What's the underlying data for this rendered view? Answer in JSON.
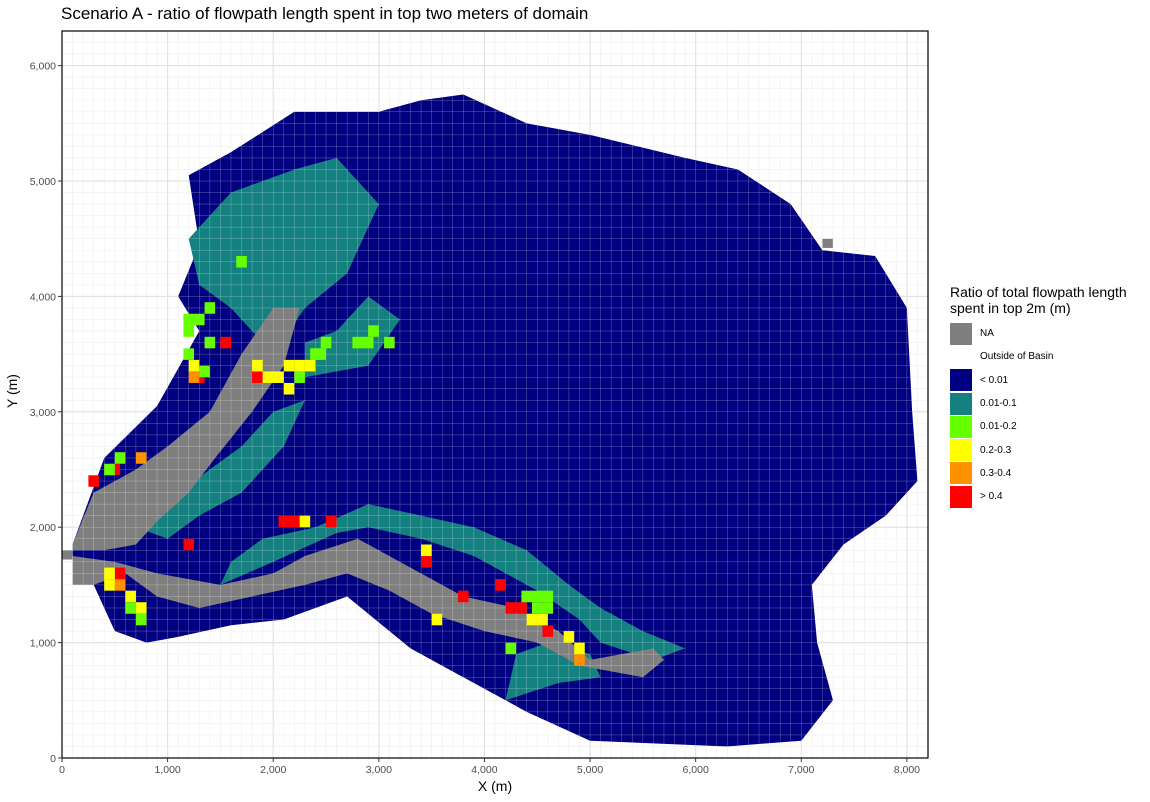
{
  "chart_data": {
    "type": "heatmap",
    "title": "Scenario A - ratio of flowpath length spent in top two meters of domain",
    "xlabel": "X (m)",
    "ylabel": "Y (m)",
    "xlim": [
      0,
      8200
    ],
    "ylim": [
      0,
      6300
    ],
    "x_ticks": [
      0,
      1000,
      2000,
      3000,
      4000,
      5000,
      6000,
      7000,
      8000
    ],
    "x_tick_labels": [
      "0",
      "1,000",
      "2,000",
      "3,000",
      "4,000",
      "5,000",
      "6,000",
      "7,000",
      "8,000"
    ],
    "y_ticks": [
      0,
      1000,
      2000,
      3000,
      4000,
      5000,
      6000
    ],
    "y_tick_labels": [
      "0",
      "1,000",
      "2,000",
      "3,000",
      "4,000",
      "5,000",
      "6,000"
    ],
    "grid": true,
    "legend": {
      "title": "Ratio of total flowpath length spent in top 2m (m)",
      "position": "right",
      "categories": [
        {
          "label": "NA",
          "color": "#7f7f7f"
        },
        {
          "label": "Outside of Basin",
          "color": "#ffffff"
        },
        {
          "label": "< 0.01",
          "color": "#000080"
        },
        {
          "label": "0.01-0.1",
          "color": "#158080"
        },
        {
          "label": "0.01-0.2",
          "color": "#66ff00"
        },
        {
          "label": "0.2-0.3",
          "color": "#ffff00"
        },
        {
          "label": "0.3-0.4",
          "color": "#ff9000"
        },
        {
          "label": "> 0.4",
          "color": "#ff0000"
        }
      ]
    },
    "basin_outline_points": [
      [
        100,
        1850
      ],
      [
        400,
        2600
      ],
      [
        900,
        3050
      ],
      [
        1300,
        3700
      ],
      [
        1100,
        4000
      ],
      [
        1300,
        4450
      ],
      [
        1200,
        5050
      ],
      [
        1600,
        5250
      ],
      [
        2200,
        5600
      ],
      [
        3000,
        5600
      ],
      [
        3400,
        5700
      ],
      [
        3800,
        5750
      ],
      [
        4400,
        5500
      ],
      [
        5000,
        5400
      ],
      [
        5900,
        5200
      ],
      [
        6400,
        5100
      ],
      [
        6900,
        4800
      ],
      [
        7200,
        4400
      ],
      [
        7700,
        4350
      ],
      [
        8000,
        3900
      ],
      [
        8050,
        3000
      ],
      [
        8100,
        2400
      ],
      [
        7800,
        2100
      ],
      [
        7400,
        1850
      ],
      [
        7100,
        1500
      ],
      [
        7150,
        1000
      ],
      [
        7300,
        500
      ],
      [
        7000,
        150
      ],
      [
        6300,
        100
      ],
      [
        5000,
        150
      ],
      [
        4400,
        400
      ],
      [
        3700,
        750
      ],
      [
        3300,
        950
      ],
      [
        2700,
        1400
      ],
      [
        2100,
        1200
      ],
      [
        1600,
        1150
      ],
      [
        1100,
        1050
      ],
      [
        800,
        1000
      ],
      [
        500,
        1100
      ],
      [
        300,
        1500
      ],
      [
        100,
        1750
      ]
    ],
    "na_regions": [
      [
        [
          100,
          1750
        ],
        [
          500,
          1700
        ],
        [
          900,
          1600
        ],
        [
          1500,
          1500
        ],
        [
          2000,
          1600
        ],
        [
          2300,
          1750
        ],
        [
          2800,
          1900
        ],
        [
          3200,
          1700
        ],
        [
          3500,
          1550
        ],
        [
          3800,
          1400
        ],
        [
          4300,
          1300
        ],
        [
          4700,
          1100
        ],
        [
          5000,
          850
        ],
        [
          5300,
          900
        ],
        [
          5600,
          950
        ],
        [
          5700,
          850
        ],
        [
          5500,
          700
        ],
        [
          4900,
          800
        ],
        [
          4500,
          1000
        ],
        [
          4000,
          1100
        ],
        [
          3500,
          1250
        ],
        [
          3100,
          1450
        ],
        [
          2700,
          1600
        ],
        [
          2300,
          1500
        ],
        [
          1800,
          1400
        ],
        [
          1300,
          1300
        ],
        [
          900,
          1400
        ],
        [
          600,
          1600
        ],
        [
          300,
          1500
        ],
        [
          100,
          1500
        ]
      ],
      [
        [
          100,
          1850
        ],
        [
          300,
          2300
        ],
        [
          700,
          2500
        ],
        [
          1000,
          2700
        ],
        [
          1400,
          3000
        ],
        [
          1700,
          3500
        ],
        [
          2000,
          3900
        ],
        [
          2250,
          3900
        ],
        [
          2100,
          3400
        ],
        [
          1800,
          3000
        ],
        [
          1450,
          2600
        ],
        [
          1200,
          2300
        ],
        [
          900,
          2050
        ],
        [
          700,
          1850
        ],
        [
          400,
          1800
        ],
        [
          100,
          1800
        ]
      ],
      [
        [
          0,
          1720
        ],
        [
          100,
          1720
        ],
        [
          100,
          1800
        ],
        [
          0,
          1800
        ]
      ],
      [
        [
          7200,
          4420
        ],
        [
          7300,
          4420
        ],
        [
          7300,
          4500
        ],
        [
          7200,
          4500
        ]
      ]
    ],
    "teal_regions": [
      [
        [
          1200,
          4500
        ],
        [
          1600,
          4900
        ],
        [
          2200,
          5100
        ],
        [
          2600,
          5200
        ],
        [
          3000,
          4800
        ],
        [
          2700,
          4200
        ],
        [
          2300,
          3900
        ],
        [
          2000,
          3500
        ],
        [
          1600,
          3900
        ],
        [
          1300,
          4100
        ]
      ],
      [
        [
          2300,
          3300
        ],
        [
          2900,
          3400
        ],
        [
          3200,
          3800
        ],
        [
          2900,
          4000
        ],
        [
          2600,
          3700
        ],
        [
          2300,
          3600
        ]
      ],
      [
        [
          700,
          2000
        ],
        [
          1100,
          2300
        ],
        [
          1700,
          2700
        ],
        [
          2000,
          3000
        ],
        [
          2300,
          3100
        ],
        [
          2100,
          2700
        ],
        [
          1700,
          2300
        ],
        [
          1300,
          2100
        ],
        [
          1000,
          1900
        ]
      ],
      [
        [
          1500,
          1500
        ],
        [
          2000,
          1700
        ],
        [
          2600,
          1950
        ],
        [
          2900,
          2000
        ],
        [
          3400,
          1900
        ],
        [
          3900,
          1750
        ],
        [
          4200,
          1600
        ],
        [
          4500,
          1450
        ],
        [
          4900,
          1200
        ],
        [
          5100,
          1000
        ],
        [
          5600,
          850
        ],
        [
          5900,
          950
        ],
        [
          5500,
          1100
        ],
        [
          5100,
          1300
        ],
        [
          4800,
          1500
        ],
        [
          4400,
          1800
        ],
        [
          3900,
          2000
        ],
        [
          3400,
          2100
        ],
        [
          2900,
          2200
        ],
        [
          2400,
          2000
        ],
        [
          1900,
          1900
        ],
        [
          1600,
          1700
        ]
      ],
      [
        [
          4200,
          500
        ],
        [
          4700,
          650
        ],
        [
          5100,
          700
        ],
        [
          5000,
          900
        ],
        [
          4600,
          1000
        ],
        [
          4300,
          900
        ]
      ]
    ],
    "cells": [
      {
        "x": 300,
        "y": 2400,
        "v": "> 0.4"
      },
      {
        "x": 500,
        "y": 2500,
        "v": "> 0.4"
      },
      {
        "x": 550,
        "y": 1600,
        "v": "> 0.4"
      },
      {
        "x": 1200,
        "y": 1850,
        "v": "> 0.4"
      },
      {
        "x": 1300,
        "y": 3300,
        "v": "> 0.4"
      },
      {
        "x": 1550,
        "y": 3600,
        "v": "> 0.4"
      },
      {
        "x": 1850,
        "y": 3300,
        "v": "> 0.4"
      },
      {
        "x": 2100,
        "y": 2050,
        "v": "> 0.4"
      },
      {
        "x": 2200,
        "y": 2050,
        "v": "> 0.4"
      },
      {
        "x": 2550,
        "y": 2050,
        "v": "> 0.4"
      },
      {
        "x": 3450,
        "y": 1700,
        "v": "> 0.4"
      },
      {
        "x": 3800,
        "y": 1400,
        "v": "> 0.4"
      },
      {
        "x": 4150,
        "y": 1500,
        "v": "> 0.4"
      },
      {
        "x": 4250,
        "y": 1300,
        "v": "> 0.4"
      },
      {
        "x": 4350,
        "y": 1300,
        "v": "> 0.4"
      },
      {
        "x": 4600,
        "y": 1100,
        "v": "> 0.4"
      },
      {
        "x": 750,
        "y": 2600,
        "v": "0.3-0.4"
      },
      {
        "x": 1250,
        "y": 3300,
        "v": "0.3-0.4"
      },
      {
        "x": 550,
        "y": 1500,
        "v": "0.3-0.4"
      },
      {
        "x": 4900,
        "y": 850,
        "v": "0.3-0.4"
      },
      {
        "x": 450,
        "y": 1600,
        "v": "0.2-0.3"
      },
      {
        "x": 450,
        "y": 1500,
        "v": "0.2-0.3"
      },
      {
        "x": 650,
        "y": 1400,
        "v": "0.2-0.3"
      },
      {
        "x": 750,
        "y": 1300,
        "v": "0.2-0.3"
      },
      {
        "x": 1250,
        "y": 3400,
        "v": "0.2-0.3"
      },
      {
        "x": 1950,
        "y": 3300,
        "v": "0.2-0.3"
      },
      {
        "x": 2050,
        "y": 3300,
        "v": "0.2-0.3"
      },
      {
        "x": 2150,
        "y": 3400,
        "v": "0.2-0.3"
      },
      {
        "x": 2250,
        "y": 3400,
        "v": "0.2-0.3"
      },
      {
        "x": 2350,
        "y": 3400,
        "v": "0.2-0.3"
      },
      {
        "x": 2150,
        "y": 3200,
        "v": "0.2-0.3"
      },
      {
        "x": 2300,
        "y": 2050,
        "v": "0.2-0.3"
      },
      {
        "x": 3450,
        "y": 1800,
        "v": "0.2-0.3"
      },
      {
        "x": 3550,
        "y": 1200,
        "v": "0.2-0.3"
      },
      {
        "x": 4450,
        "y": 1200,
        "v": "0.2-0.3"
      },
      {
        "x": 4550,
        "y": 1200,
        "v": "0.2-0.3"
      },
      {
        "x": 4800,
        "y": 1050,
        "v": "0.2-0.3"
      },
      {
        "x": 4900,
        "y": 950,
        "v": "0.2-0.3"
      },
      {
        "x": 1850,
        "y": 3400,
        "v": "0.2-0.3"
      },
      {
        "x": 450,
        "y": 2500,
        "v": "0.01-0.2"
      },
      {
        "x": 550,
        "y": 2600,
        "v": "0.01-0.2"
      },
      {
        "x": 650,
        "y": 1300,
        "v": "0.01-0.2"
      },
      {
        "x": 750,
        "y": 1200,
        "v": "0.01-0.2"
      },
      {
        "x": 1200,
        "y": 3500,
        "v": "0.01-0.2"
      },
      {
        "x": 1200,
        "y": 3700,
        "v": "0.01-0.2"
      },
      {
        "x": 1200,
        "y": 3800,
        "v": "0.01-0.2"
      },
      {
        "x": 1300,
        "y": 3800,
        "v": "0.01-0.2"
      },
      {
        "x": 1400,
        "y": 3900,
        "v": "0.01-0.2"
      },
      {
        "x": 1700,
        "y": 4300,
        "v": "0.01-0.2"
      },
      {
        "x": 1350,
        "y": 3350,
        "v": "0.01-0.2"
      },
      {
        "x": 1400,
        "y": 3600,
        "v": "0.01-0.2"
      },
      {
        "x": 2400,
        "y": 3500,
        "v": "0.01-0.2"
      },
      {
        "x": 2500,
        "y": 3600,
        "v": "0.01-0.2"
      },
      {
        "x": 2450,
        "y": 3500,
        "v": "0.01-0.2"
      },
      {
        "x": 2800,
        "y": 3600,
        "v": "0.01-0.2"
      },
      {
        "x": 2900,
        "y": 3600,
        "v": "0.01-0.2"
      },
      {
        "x": 2950,
        "y": 3700,
        "v": "0.01-0.2"
      },
      {
        "x": 3100,
        "y": 3600,
        "v": "0.01-0.2"
      },
      {
        "x": 2250,
        "y": 3300,
        "v": "0.01-0.2"
      },
      {
        "x": 4400,
        "y": 1400,
        "v": "0.01-0.2"
      },
      {
        "x": 4500,
        "y": 1400,
        "v": "0.01-0.2"
      },
      {
        "x": 4600,
        "y": 1400,
        "v": "0.01-0.2"
      },
      {
        "x": 4500,
        "y": 1300,
        "v": "0.01-0.2"
      },
      {
        "x": 4600,
        "y": 1300,
        "v": "0.01-0.2"
      },
      {
        "x": 4250,
        "y": 950,
        "v": "0.01-0.2"
      }
    ]
  }
}
